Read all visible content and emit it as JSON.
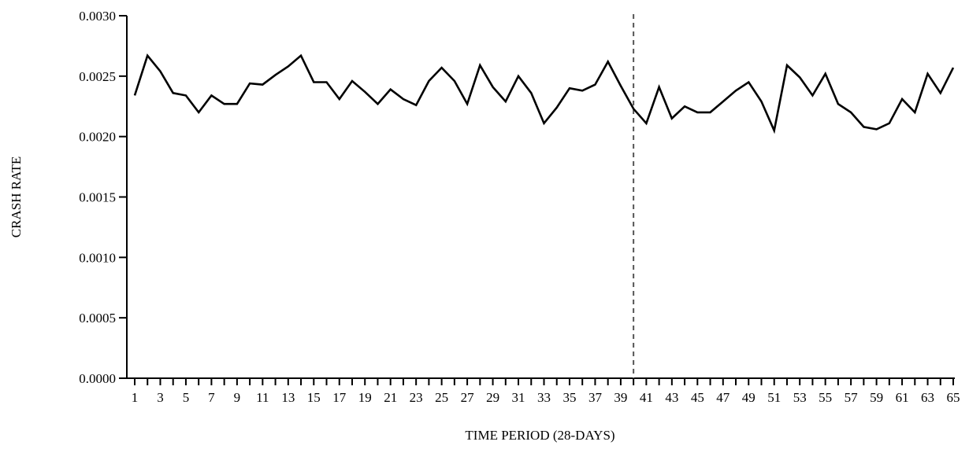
{
  "chart_data": {
    "type": "line",
    "xlabel": "TIME PERIOD (28-DAYS)",
    "ylabel": "CRASH RATE",
    "xlim": [
      1,
      65
    ],
    "ylim": [
      0,
      0.003
    ],
    "y_ticks": [
      "0.0000",
      "0.0005",
      "0.0010",
      "0.0015",
      "0.0020",
      "0.0025",
      "0.0030"
    ],
    "y_tick_values": [
      0,
      0.0005,
      0.001,
      0.0015,
      0.002,
      0.0025,
      0.003
    ],
    "x_tick_labels": [
      "1",
      "3",
      "5",
      "7",
      "9",
      "11",
      "13",
      "15",
      "17",
      "19",
      "21",
      "23",
      "25",
      "27",
      "29",
      "31",
      "33",
      "35",
      "37",
      "39",
      "41",
      "43",
      "45",
      "47",
      "49",
      "51",
      "53",
      "55",
      "57",
      "59",
      "61",
      "63",
      "65"
    ],
    "x_tick_values": [
      1,
      3,
      5,
      7,
      9,
      11,
      13,
      15,
      17,
      19,
      21,
      23,
      25,
      27,
      29,
      31,
      33,
      35,
      37,
      39,
      41,
      43,
      45,
      47,
      49,
      51,
      53,
      55,
      57,
      59,
      61,
      63,
      65
    ],
    "reference_line_x": 40,
    "line_color": "#000000",
    "reference_line_color": "#555555",
    "series": [
      {
        "x": [
          1,
          2,
          3,
          4,
          5,
          6,
          7,
          8,
          9,
          10,
          11,
          12,
          13,
          14,
          15,
          16,
          17,
          18,
          19,
          20,
          21,
          22,
          23,
          24,
          25,
          26,
          27,
          28,
          29,
          30,
          31,
          32,
          33,
          34,
          35,
          36,
          37,
          38,
          39,
          40,
          41,
          42,
          43,
          44,
          45,
          46,
          47,
          48,
          49,
          50,
          51,
          52,
          53,
          54,
          55,
          56,
          57,
          58,
          59,
          60,
          61,
          62,
          63,
          64,
          65
        ],
        "values": [
          0.00234,
          0.00267,
          0.00254,
          0.00236,
          0.00234,
          0.0022,
          0.00234,
          0.00227,
          0.00227,
          0.00244,
          0.00243,
          0.00251,
          0.00258,
          0.00267,
          0.00245,
          0.00245,
          0.00231,
          0.00246,
          0.00237,
          0.00227,
          0.00239,
          0.00231,
          0.00226,
          0.00246,
          0.00257,
          0.00246,
          0.00227,
          0.00259,
          0.00241,
          0.00229,
          0.0025,
          0.00236,
          0.00211,
          0.00224,
          0.0024,
          0.00238,
          0.00243,
          0.00262,
          0.00242,
          0.00223,
          0.00211,
          0.00241,
          0.00215,
          0.00225,
          0.0022,
          0.0022,
          0.00229,
          0.00238,
          0.00245,
          0.00229,
          0.00205,
          0.00259,
          0.00249,
          0.00234,
          0.00252,
          0.00227,
          0.0022,
          0.00208,
          0.00206,
          0.00211,
          0.00231,
          0.0022,
          0.00252,
          0.00236,
          0.00257
        ]
      }
    ]
  }
}
